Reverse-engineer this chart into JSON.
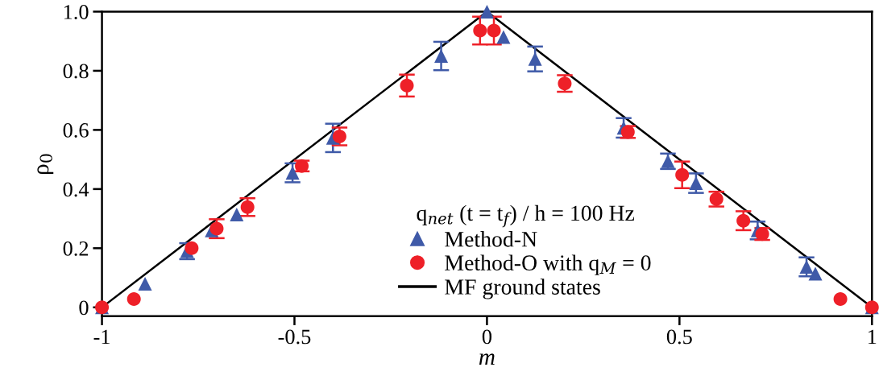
{
  "chart_data": {
    "type": "scatter",
    "xlabel": "m",
    "ylabel": "ρ$_{0}$",
    "legend_title": "q$_{net}$ (t = t$_{f}$) / h = 100 Hz",
    "xlim": [
      -1,
      1
    ],
    "ylim": [
      -0.03,
      1.0
    ],
    "xticks": [
      {
        "value": -1,
        "label": "-1"
      },
      {
        "value": -0.5,
        "label": "-0.5"
      },
      0,
      0.5,
      1
    ],
    "yticks": [
      0,
      0.2,
      0.4,
      0.6,
      0.8,
      {
        "value": 1.0,
        "label": "1.0"
      }
    ],
    "grid": false,
    "legend": "bottom",
    "series": [
      {
        "name": "Method-N",
        "marker": "triangle",
        "color": "#3f5aa8",
        "x": [
          -1,
          -0.888,
          -0.779,
          -0.715,
          -0.65,
          -0.505,
          -0.4,
          -0.119,
          0,
          0.043,
          0.125,
          0.355,
          0.47,
          0.543,
          0.703,
          0.83,
          0.853,
          1
        ],
        "values": [
          0,
          0.08,
          0.19,
          0.26,
          0.314,
          0.455,
          0.573,
          0.85,
          1.0,
          0.914,
          0.84,
          0.607,
          0.494,
          0.42,
          0.26,
          0.137,
          0.114,
          0
        ],
        "errors": [
          null,
          null,
          0.027,
          null,
          null,
          0.032,
          0.048,
          0.048,
          null,
          null,
          0.042,
          0.033,
          0.026,
          0.033,
          0.03,
          0.032,
          null,
          null
        ]
      },
      {
        "name": "Method-O with q$_{M}$ = 0",
        "marker": "circle",
        "color": "#ee2028",
        "x": [
          -1,
          -0.917,
          -0.767,
          -0.702,
          -0.622,
          -0.481,
          -0.383,
          -0.208,
          -0.018,
          0.018,
          0.202,
          0.366,
          0.507,
          0.596,
          0.666,
          0.715,
          0.918,
          1
        ],
        "values": [
          0,
          0.028,
          0.2,
          0.266,
          0.339,
          0.478,
          0.578,
          0.75,
          0.936,
          0.936,
          0.757,
          0.593,
          0.448,
          0.366,
          0.293,
          0.248,
          0.028,
          0
        ],
        "errors": [
          null,
          null,
          null,
          0.032,
          0.03,
          0.018,
          0.03,
          0.037,
          0.047,
          0.047,
          0.028,
          0.02,
          0.045,
          0.025,
          0.032,
          0.02,
          null,
          null
        ]
      },
      {
        "name": "MF ground states",
        "type": "line",
        "line_style": "solid",
        "marker": "none",
        "color": "#000000",
        "x": [
          -1,
          0,
          1
        ],
        "values": [
          0,
          1,
          0
        ]
      }
    ]
  }
}
